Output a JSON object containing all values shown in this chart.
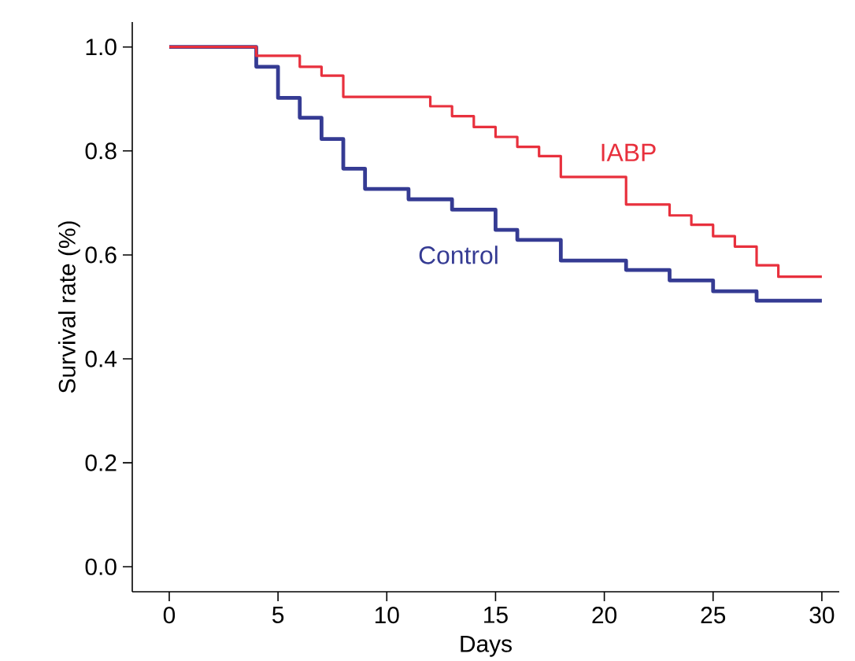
{
  "chart_data": {
    "type": "step",
    "xlabel": "Days",
    "ylabel": "Survival rate (%)",
    "xlim": [
      -1.7,
      30.8
    ],
    "ylim": [
      -0.048,
      1.048
    ],
    "xticks": [
      0,
      5,
      10,
      15,
      20,
      25,
      30
    ],
    "yticks": [
      {
        "value": 0,
        "label": "0.0"
      },
      {
        "value": 0.2,
        "label": "0.2"
      },
      {
        "value": 0.4,
        "label": "0.4"
      },
      {
        "value": 0.6,
        "label": "0.6"
      },
      {
        "value": 0.8,
        "label": "0.8"
      },
      {
        "value": 1,
        "label": "1.0"
      }
    ],
    "grid": false,
    "legend": false,
    "series": [
      {
        "name": "IABP",
        "color": "#e8303d",
        "x": [
          0,
          4,
          6,
          7,
          8,
          12,
          13,
          14,
          15,
          16,
          17,
          18,
          21,
          23,
          24,
          25,
          26,
          27,
          28,
          30
        ],
        "values": [
          1.0,
          0.983,
          0.962,
          0.945,
          0.904,
          0.886,
          0.867,
          0.846,
          0.827,
          0.808,
          0.79,
          0.75,
          0.697,
          0.676,
          0.658,
          0.636,
          0.616,
          0.58,
          0.558,
          0.558
        ]
      },
      {
        "name": "Control",
        "color": "#353b93",
        "x": [
          0,
          4,
          5,
          6,
          7,
          8,
          9,
          11,
          13,
          15,
          16,
          18,
          21,
          23,
          25,
          27,
          30
        ],
        "values": [
          1.0,
          0.962,
          0.902,
          0.864,
          0.823,
          0.766,
          0.727,
          0.707,
          0.687,
          0.648,
          0.629,
          0.589,
          0.571,
          0.551,
          0.53,
          0.512,
          0.512
        ]
      }
    ]
  }
}
